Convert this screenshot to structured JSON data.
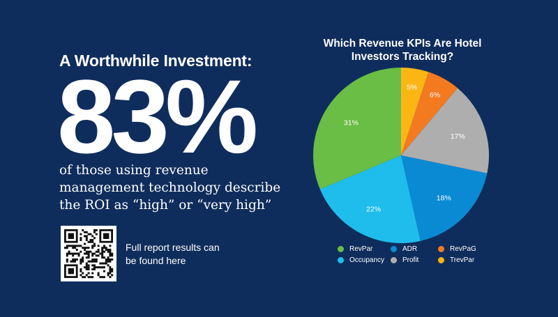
{
  "headline": "A Worthwhile Investment:",
  "big_stat": "83%",
  "stat_description": "of those using revenue management technology describe the ROI as “high” or “very high”",
  "qr_note": "Full report results can be found here",
  "chart_data": {
    "type": "pie",
    "title": "Which Revenue KPIs Are Hotel Investors Tracking?",
    "slices": [
      {
        "name": "TrevPar",
        "value": 5,
        "label": "5%",
        "color": "#fbb614"
      },
      {
        "name": "RevPaG",
        "value": 6,
        "label": "6%",
        "color": "#f47a20"
      },
      {
        "name": "Profit",
        "value": 17,
        "label": "17%",
        "color": "#aeaeae"
      },
      {
        "name": "ADR",
        "value": 18,
        "label": "18%",
        "color": "#0b8ad4"
      },
      {
        "name": "Occupancy",
        "value": 22,
        "label": "22%",
        "color": "#1fbdeb"
      },
      {
        "name": "RevPar",
        "value": 31,
        "label": "31%",
        "color": "#6abd45"
      }
    ],
    "legend_order": [
      "RevPar",
      "ADR",
      "RevPaG",
      "Occupancy",
      "Profit",
      "TrevPar"
    ],
    "legend_position": "bottom"
  }
}
